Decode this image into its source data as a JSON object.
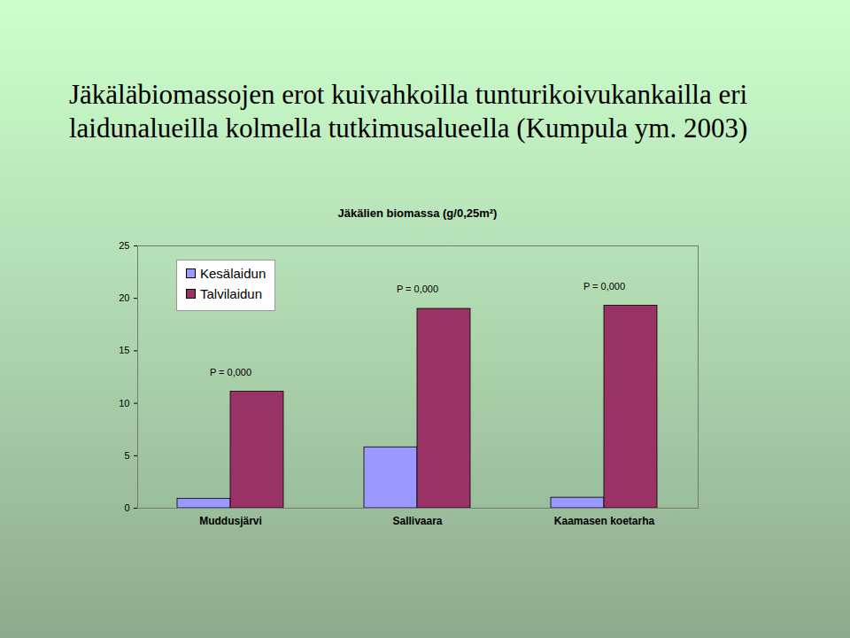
{
  "heading": "Jäkäläbiomassojen erot kuivahkoilla tunturikoivukankailla eri laidunalueilla kolmella tutkimusalueella (Kumpula ym. 2003)",
  "chart_data": {
    "type": "bar",
    "title": "Jäkälien biomassa (g/0,25m²)",
    "categories": [
      "Muddusjärvi",
      "Sallivaara",
      "Kaamasen koetarha"
    ],
    "series": [
      {
        "name": "Kesälaidun",
        "color": "#9999ff",
        "values": [
          0.9,
          5.8,
          1.0
        ]
      },
      {
        "name": "Talvilaidun",
        "color": "#993366",
        "values": [
          11.1,
          19.0,
          19.3
        ]
      }
    ],
    "ylim": [
      0,
      25
    ],
    "yticks": [
      0,
      5,
      10,
      15,
      20,
      25
    ],
    "grid": false,
    "legend": "top-left",
    "annotations": [
      {
        "category": "Muddusjärvi",
        "text": "P = 0,000"
      },
      {
        "category": "Sallivaara",
        "text": "P = 0,000"
      },
      {
        "category": "Kaamasen koetarha",
        "text": "P = 0,000"
      }
    ]
  }
}
